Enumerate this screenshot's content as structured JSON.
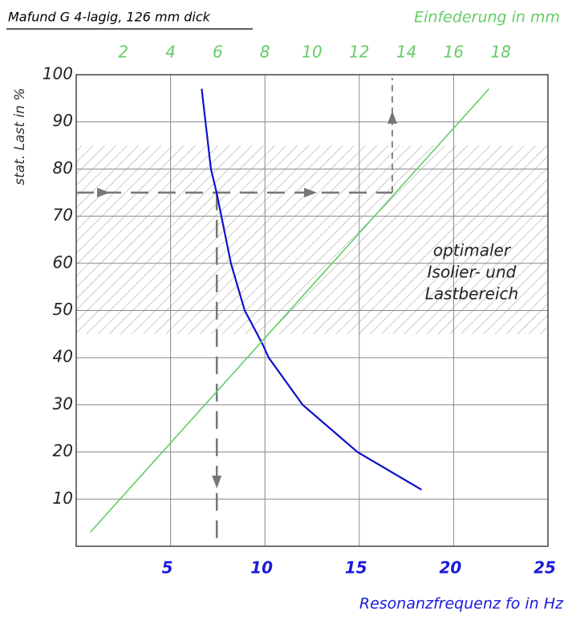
{
  "chart_data": {
    "type": "line",
    "title": "Mafund G 4-lagig, 126 mm dick",
    "xlabel": "Resonanzfrequenz fo in Hz",
    "ylabel": "stat. Last in %",
    "x2label": "Einfederung in mm",
    "annotation": [
      "optimaler",
      "Isolier- und",
      "Lastbereich"
    ],
    "xlim": [
      0,
      25
    ],
    "xticks": [
      5,
      10,
      15,
      20,
      25
    ],
    "x2lim": [
      0,
      20
    ],
    "x2ticks": [
      2,
      4,
      6,
      8,
      10,
      12,
      14,
      16,
      18
    ],
    "ylim": [
      0,
      100
    ],
    "yticks": [
      10,
      20,
      30,
      40,
      50,
      60,
      70,
      80,
      90,
      100
    ],
    "grid": true,
    "band": [
      45,
      85
    ],
    "reference_load": 75,
    "reference_frequency": 7.45,
    "reference_deflection": 13.4,
    "series": [
      {
        "color": "#1010cc",
        "axis": "x",
        "x": [
          6.65,
          7.14,
          7.44,
          8.2,
          8.93,
          9.86,
          10.2,
          12.0,
          14.9,
          18.3
        ],
        "values": [
          97,
          80,
          75,
          60,
          50,
          43,
          40,
          30,
          20,
          12
        ]
      },
      {
        "color": "#66cc66",
        "axis": "x2",
        "x": [
          0.6,
          17.5
        ],
        "values": [
          3,
          97
        ]
      }
    ]
  }
}
